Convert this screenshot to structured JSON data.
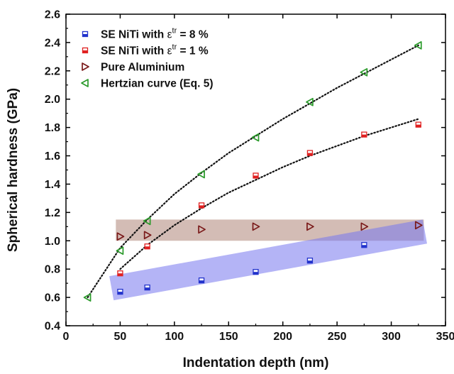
{
  "chart_data": {
    "type": "scatter",
    "title": "",
    "xlabel": "Indentation depth (nm)",
    "ylabel": "Spherical hardness (GPa)",
    "xlim": [
      0,
      350
    ],
    "ylim": [
      0.4,
      2.6
    ],
    "x_ticks": [
      0,
      50,
      100,
      150,
      200,
      250,
      300,
      350
    ],
    "y_ticks": [
      0.4,
      0.6,
      0.8,
      1.0,
      1.2,
      1.4,
      1.6,
      1.8,
      2.0,
      2.2,
      2.4,
      2.6
    ],
    "x_tick_labels": [
      "0",
      "50",
      "100",
      "150",
      "200",
      "250",
      "300",
      "350"
    ],
    "y_tick_labels": [
      "0.4",
      "0.6",
      "0.8",
      "1.0",
      "1.2",
      "1.4",
      "1.6",
      "1.8",
      "2.0",
      "2.2",
      "2.4",
      "2.6"
    ],
    "grid": false,
    "legend_position": "top-left",
    "series": [
      {
        "name": "SE NiTi with εtr = 8 %",
        "legend_parts": [
          "SE NiTi with ",
          "ε",
          "tr",
          " = 8 %"
        ],
        "marker": "half-filled-square",
        "color": "#2233cc",
        "x": [
          50,
          75,
          125,
          175,
          225,
          275
        ],
        "y": [
          0.64,
          0.67,
          0.72,
          0.78,
          0.86,
          0.97
        ]
      },
      {
        "name": "SE NiTi with εtr = 1 %",
        "legend_parts": [
          "SE NiTi with ",
          "ε",
          "tr",
          " = 1 %"
        ],
        "marker": "half-filled-square",
        "color": "#e02020",
        "x": [
          50,
          75,
          125,
          175,
          225,
          275,
          325
        ],
        "y": [
          0.77,
          0.96,
          1.25,
          1.46,
          1.62,
          1.75,
          1.82
        ]
      },
      {
        "name": "Pure Aluminium",
        "legend_parts": [
          "Pure Aluminium"
        ],
        "marker": "triangle-right",
        "color": "#7a1a1a",
        "x": [
          50,
          75,
          125,
          175,
          225,
          275,
          325
        ],
        "y": [
          1.03,
          1.04,
          1.08,
          1.1,
          1.1,
          1.1,
          1.11
        ]
      },
      {
        "name": "Hertzian curve (Eq. 5)",
        "legend_parts": [
          "Hertzian curve (Eq. 5)"
        ],
        "marker": "triangle-left",
        "color": "#2a9a2a",
        "x": [
          20,
          50,
          75,
          125,
          175,
          225,
          275,
          325
        ],
        "y": [
          0.6,
          0.93,
          1.14,
          1.47,
          1.73,
          1.98,
          2.19,
          2.38
        ]
      }
    ],
    "fit_curves": [
      {
        "style": "dotted",
        "color": "#111111",
        "x": [
          20,
          50,
          75,
          100,
          125,
          150,
          175,
          200,
          225,
          250,
          275,
          300,
          325
        ],
        "y": [
          0.6,
          0.95,
          1.15,
          1.33,
          1.48,
          1.62,
          1.74,
          1.86,
          1.97,
          2.08,
          2.18,
          2.28,
          2.38
        ]
      },
      {
        "style": "dotted",
        "color": "#111111",
        "x": [
          50,
          75,
          100,
          125,
          150,
          175,
          200,
          225,
          250,
          275,
          300,
          325
        ],
        "y": [
          0.8,
          0.97,
          1.11,
          1.23,
          1.34,
          1.43,
          1.52,
          1.6,
          1.67,
          1.74,
          1.8,
          1.86
        ]
      }
    ],
    "bands": [
      {
        "color": "#9e6b5a",
        "opacity": 0.45,
        "polygon": [
          [
            46,
            1.15
          ],
          [
            330,
            1.15
          ],
          [
            330,
            1.0
          ],
          [
            46,
            1.0
          ]
        ]
      },
      {
        "color": "#7777ee",
        "opacity": 0.55,
        "polygon": [
          [
            40,
            0.75
          ],
          [
            329,
            1.15
          ],
          [
            333,
            0.98
          ],
          [
            44,
            0.58
          ]
        ]
      }
    ]
  }
}
